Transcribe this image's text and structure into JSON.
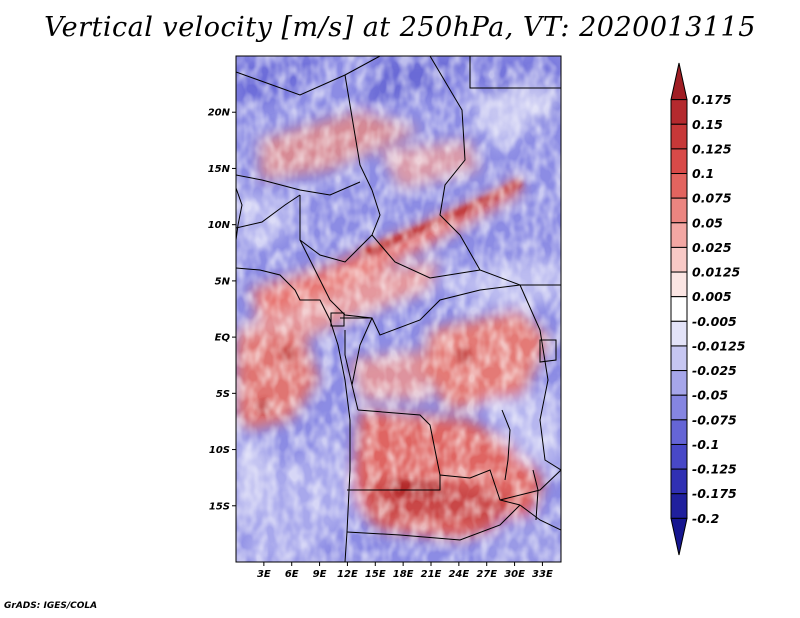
{
  "title": "Vertical velocity [m/s] at 250hPa, VT: 2020013115",
  "credit": "GrADS: IGES/COLA",
  "map": {
    "lon_range": [
      0,
      35
    ],
    "lat_range": [
      -20,
      25
    ],
    "lat_ticks": [
      {
        "value": 20,
        "label": "20N"
      },
      {
        "value": 15,
        "label": "15N"
      },
      {
        "value": 10,
        "label": "10N"
      },
      {
        "value": 5,
        "label": "5N"
      },
      {
        "value": 0,
        "label": "EQ"
      },
      {
        "value": -5,
        "label": "5S"
      },
      {
        "value": -10,
        "label": "10S"
      },
      {
        "value": -15,
        "label": "15S"
      }
    ],
    "lon_ticks": [
      {
        "value": 3,
        "label": "3E"
      },
      {
        "value": 6,
        "label": "6E"
      },
      {
        "value": 9,
        "label": "9E"
      },
      {
        "value": 12,
        "label": "12E"
      },
      {
        "value": 15,
        "label": "15E"
      },
      {
        "value": 18,
        "label": "18E"
      },
      {
        "value": 21,
        "label": "21E"
      },
      {
        "value": 24,
        "label": "24E"
      },
      {
        "value": 27,
        "label": "27E"
      },
      {
        "value": 30,
        "label": "30E"
      },
      {
        "value": 33,
        "label": "33E"
      }
    ]
  },
  "colorbar": {
    "labels": [
      "0.175",
      "0.15",
      "0.125",
      "0.1",
      "0.075",
      "0.05",
      "0.025",
      "0.0125",
      "0.005",
      "-0.005",
      "-0.0125",
      "-0.025",
      "-0.05",
      "-0.075",
      "-0.1",
      "-0.125",
      "-0.175",
      "-0.2"
    ],
    "colors": [
      "#a01e24",
      "#b42a2e",
      "#c73838",
      "#d84a48",
      "#e2645f",
      "#eb8580",
      "#f3a7a3",
      "#f8c9c6",
      "#fbe5e3",
      "#ffffff",
      "#e3e3f8",
      "#c6c6f1",
      "#a6a6ea",
      "#8585e1",
      "#6565d6",
      "#4848c7",
      "#3030b3",
      "#20209d",
      "#161690"
    ]
  }
}
